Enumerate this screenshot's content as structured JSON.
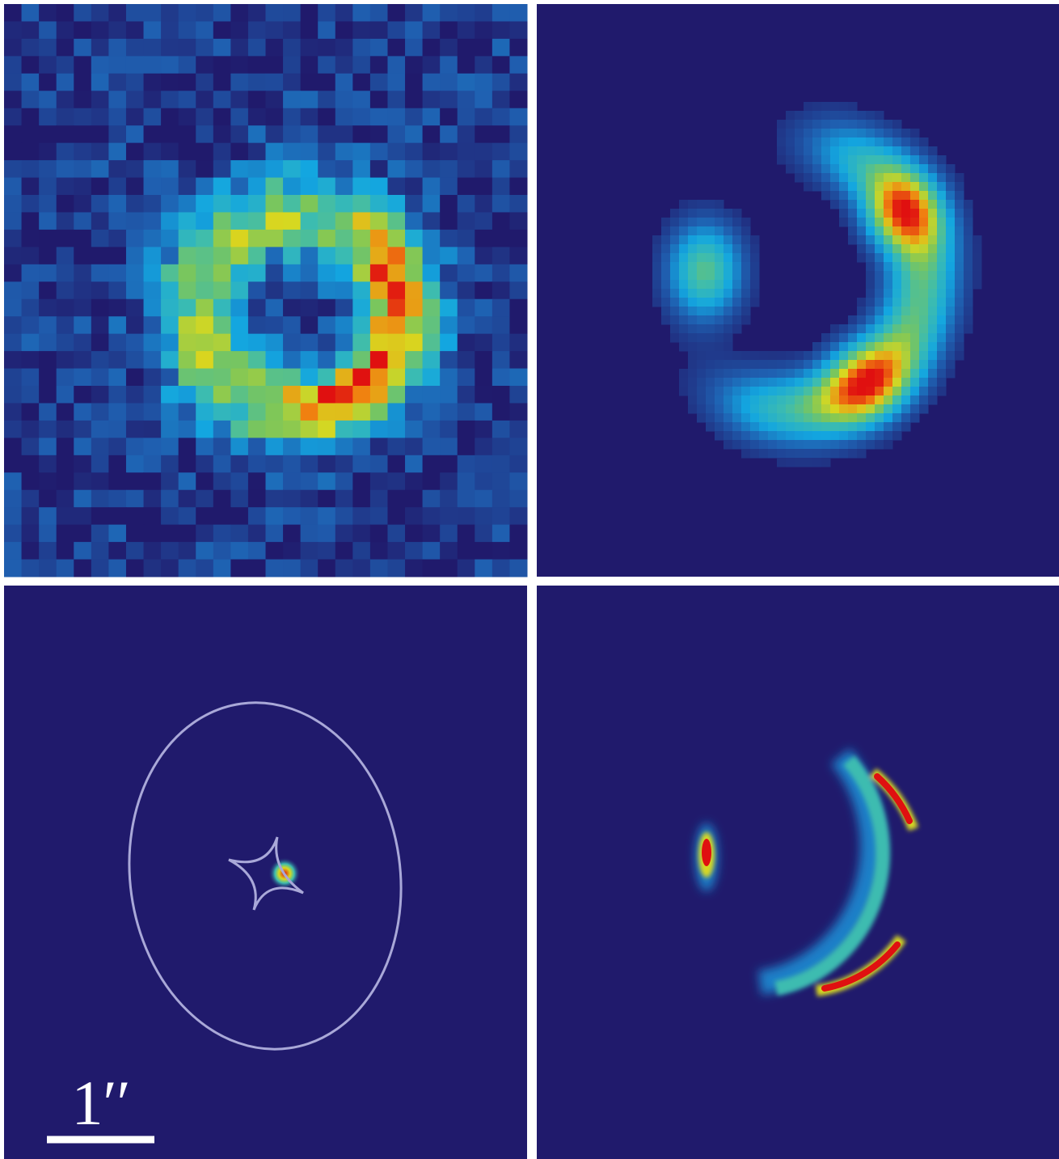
{
  "scale_bar": {
    "label": "1′′"
  }
}
